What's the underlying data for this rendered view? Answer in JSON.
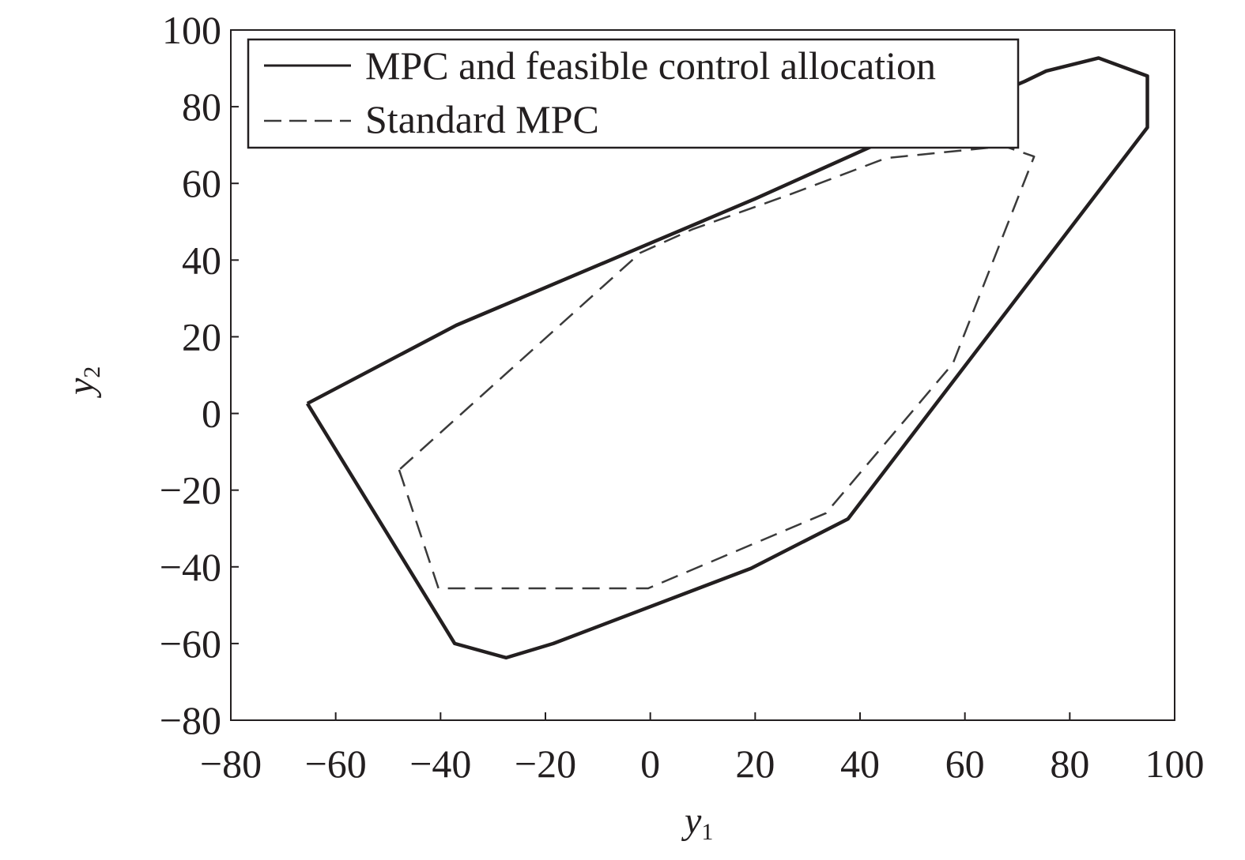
{
  "chart_data": {
    "type": "line",
    "xlabel": "y",
    "xlabel_sub": "1",
    "ylabel": "y",
    "ylabel_sub": "2",
    "xlim": [
      -80,
      100
    ],
    "ylim": [
      -80,
      100
    ],
    "xticks": [
      -80,
      -60,
      -40,
      -20,
      0,
      20,
      40,
      60,
      80,
      100
    ],
    "yticks": [
      -80,
      -60,
      -40,
      -20,
      0,
      20,
      40,
      60,
      80,
      100
    ],
    "grid": false,
    "legend_position": "top",
    "series": [
      {
        "name": "MPC and feasible control allocation",
        "style": "solid",
        "color": "#231f20",
        "x": [
          -65.4,
          -37.3,
          -27.5,
          -18.5,
          19.2,
          37.7,
          94.8,
          94.8,
          85.5,
          75.5,
          71.4,
          42.0,
          20.0,
          0.0,
          -37.0,
          -65.4
        ],
        "y": [
          2.6,
          -60.0,
          -63.7,
          -60.0,
          -40.4,
          -27.5,
          74.6,
          88.0,
          92.7,
          89.3,
          86.6,
          69.5,
          56.0,
          44.4,
          23.0,
          2.6
        ]
      },
      {
        "name": "Standard MPC",
        "style": "dashed",
        "color": "#3a3a3a",
        "x": [
          -47.9,
          -40.4,
          -0.4,
          33.5,
          57.7,
          73.2,
          67.5,
          45.0,
          27.0,
          8.0,
          -1.9,
          -47.9
        ],
        "y": [
          -14.7,
          -45.6,
          -45.6,
          -26.0,
          13.0,
          67.0,
          69.7,
          66.6,
          57.3,
          48.0,
          41.9,
          -14.7
        ]
      }
    ]
  }
}
